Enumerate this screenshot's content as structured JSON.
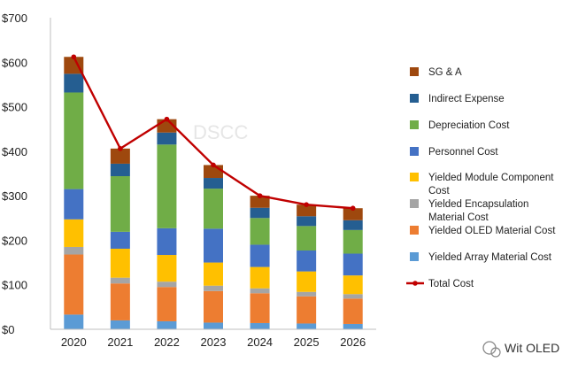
{
  "chart_data": {
    "type": "bar",
    "stacked": true,
    "categories": [
      "2020",
      "2021",
      "2022",
      "2023",
      "2024",
      "2025",
      "2026"
    ],
    "ylim": [
      0,
      700
    ],
    "yticks": [
      "$0",
      "$100",
      "$200",
      "$300",
      "$400",
      "$500",
      "$600",
      "$700"
    ],
    "series": [
      {
        "name": "Yielded Array Material Cost",
        "color": "#5b9bd5",
        "values": [
          33,
          20,
          18,
          15,
          14,
          13,
          12
        ]
      },
      {
        "name": "Yielded OLED Material Cost",
        "color": "#ed7d31",
        "values": [
          135,
          83,
          77,
          71,
          67,
          61,
          57
        ]
      },
      {
        "name": "Yielded Encapsulation Material Cost",
        "color": "#a5a5a5",
        "values": [
          17,
          13,
          12,
          12,
          11,
          10,
          10
        ]
      },
      {
        "name": "Yielded Module Component Cost",
        "color": "#ffc000",
        "values": [
          62,
          65,
          60,
          52,
          48,
          46,
          42
        ]
      },
      {
        "name": "Personnel Cost",
        "color": "#4472c4",
        "values": [
          68,
          38,
          60,
          76,
          50,
          47,
          49
        ]
      },
      {
        "name": "Depreciation Cost",
        "color": "#70ad47",
        "values": [
          217,
          125,
          188,
          90,
          60,
          55,
          53
        ]
      },
      {
        "name": "Indirect Expense",
        "color": "#255e91",
        "values": [
          42,
          28,
          27,
          24,
          23,
          22,
          22
        ]
      },
      {
        "name": "SG & A",
        "color": "#9e480e",
        "values": [
          38,
          34,
          30,
          29,
          27,
          26,
          27
        ]
      }
    ],
    "line": {
      "name": "Total Cost",
      "color": "#c00000",
      "values": [
        612,
        406,
        472,
        369,
        300,
        280,
        272
      ]
    },
    "legend_order": [
      "SG & A",
      "Indirect Expense",
      "Depreciation Cost",
      "Personnel Cost",
      "Yielded Module Component Cost",
      "Yielded Encapsulation Material Cost",
      "Yielded OLED Material Cost",
      "Yielded Array Material Cost",
      "Total Cost"
    ],
    "legend_lines": [
      [
        "SG & A"
      ],
      [
        "Indirect Expense"
      ],
      [
        "Depreciation Cost"
      ],
      [
        "Personnel Cost"
      ],
      [
        "Yielded Module Component",
        "Cost"
      ],
      [
        "Yielded Encapsulation",
        "Material Cost"
      ],
      [
        "Yielded OLED Material Cost"
      ],
      [
        "Yielded Array Material Cost"
      ],
      [
        "Total Cost"
      ]
    ],
    "legend_position": "right",
    "watermark": "DSCC",
    "brand": "Wit OLED"
  }
}
